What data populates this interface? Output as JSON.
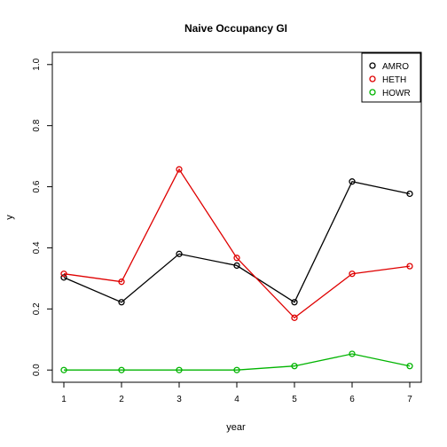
{
  "chart_data": {
    "type": "line",
    "title": "Naive Occupancy GI",
    "xlabel": "year",
    "ylabel": "y",
    "x": [
      1,
      2,
      3,
      4,
      5,
      6,
      7
    ],
    "xlim": [
      0.8,
      7.2
    ],
    "ylim": [
      -0.04,
      1.04
    ],
    "xticks": [
      1,
      2,
      3,
      4,
      5,
      6,
      7
    ],
    "yticks": [
      "0.0",
      "0.2",
      "0.4",
      "0.6",
      "0.8",
      "1.0"
    ],
    "grid": false,
    "legend_position": "top-right",
    "series": [
      {
        "name": "AMRO",
        "color": "#000000",
        "values": [
          0.303,
          0.222,
          0.38,
          0.342,
          0.222,
          0.617,
          0.577
        ]
      },
      {
        "name": "HETH",
        "color": "#df0000",
        "values": [
          0.315,
          0.289,
          0.657,
          0.367,
          0.171,
          0.315,
          0.34
        ]
      },
      {
        "name": "HOWR",
        "color": "#00b400",
        "values": [
          0.0,
          0.0,
          0.0,
          0.0,
          0.013,
          0.053,
          0.013
        ]
      }
    ]
  }
}
